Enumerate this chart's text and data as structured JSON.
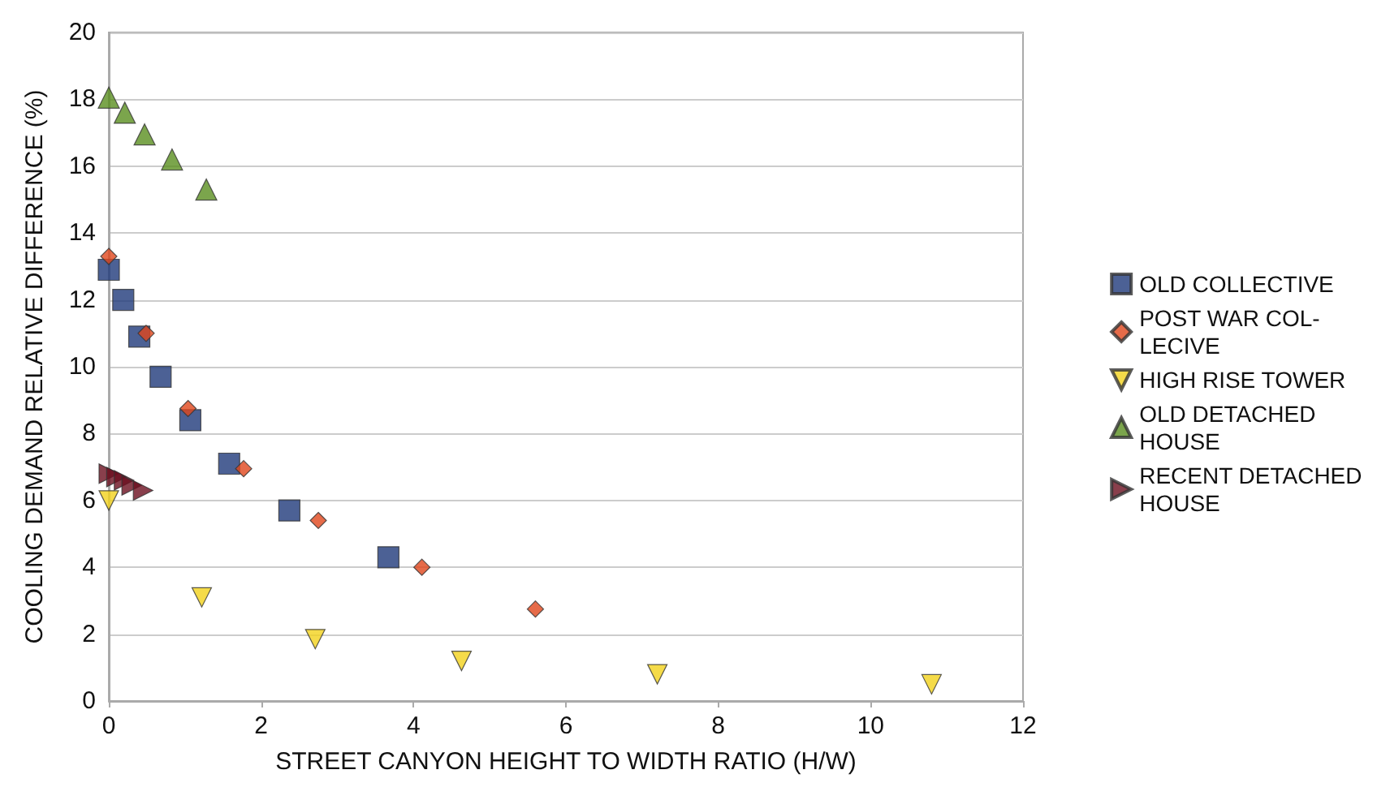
{
  "chart_data": {
    "type": "scatter",
    "xlabel": "STREET CANYON HEIGHT TO WIDTH RATIO (H/W)",
    "ylabel": "COOLING DEMAND RELATIVE DIFFERENCE (%)",
    "xlim": [
      0,
      12
    ],
    "xticks": [
      0,
      2,
      4,
      6,
      8,
      10,
      12
    ],
    "ylim": [
      0,
      20
    ],
    "yticks": [
      0,
      2,
      4,
      6,
      8,
      10,
      12,
      14,
      16,
      18,
      20
    ],
    "grid": "y",
    "legend": "right",
    "series": [
      {
        "name": "OLD COLLECTIVE",
        "color": "#1f3a7a",
        "marker": "square",
        "x": [
          0,
          0.19,
          0.4,
          0.68,
          1.07,
          1.58,
          2.37,
          3.67
        ],
        "values": [
          12.9,
          12.0,
          10.9,
          9.7,
          8.4,
          7.1,
          5.7,
          4.3
        ]
      },
      {
        "name": "POST WAR COL-\nLECIVE",
        "color": "#e0461c",
        "marker": "diamond",
        "x": [
          0,
          0.49,
          1.04,
          1.77,
          2.75,
          4.11,
          5.6
        ],
        "values": [
          13.3,
          11.0,
          8.75,
          6.95,
          5.4,
          4.0,
          2.75
        ]
      },
      {
        "name": "HIGH RISE TOWER",
        "color": "#f2d21c",
        "marker": "triangle-down",
        "x": [
          0,
          1.22,
          2.71,
          4.63,
          7.2,
          10.8
        ],
        "values": [
          6.0,
          3.1,
          1.85,
          1.2,
          0.8,
          0.5
        ]
      },
      {
        "name": "OLD DETACHED\nHOUSE",
        "color": "#5a8f1f",
        "marker": "triangle",
        "x": [
          0,
          0.21,
          0.47,
          0.83,
          1.28
        ],
        "values": [
          18.05,
          17.6,
          16.95,
          16.2,
          15.3
        ]
      },
      {
        "name": "RECENT DETACHED\nHOUSE",
        "color": "#6b0f1f",
        "marker": "triangle-right",
        "x": [
          0,
          0.1,
          0.2,
          0.3,
          0.45
        ],
        "values": [
          6.8,
          6.7,
          6.6,
          6.45,
          6.3
        ]
      }
    ]
  }
}
